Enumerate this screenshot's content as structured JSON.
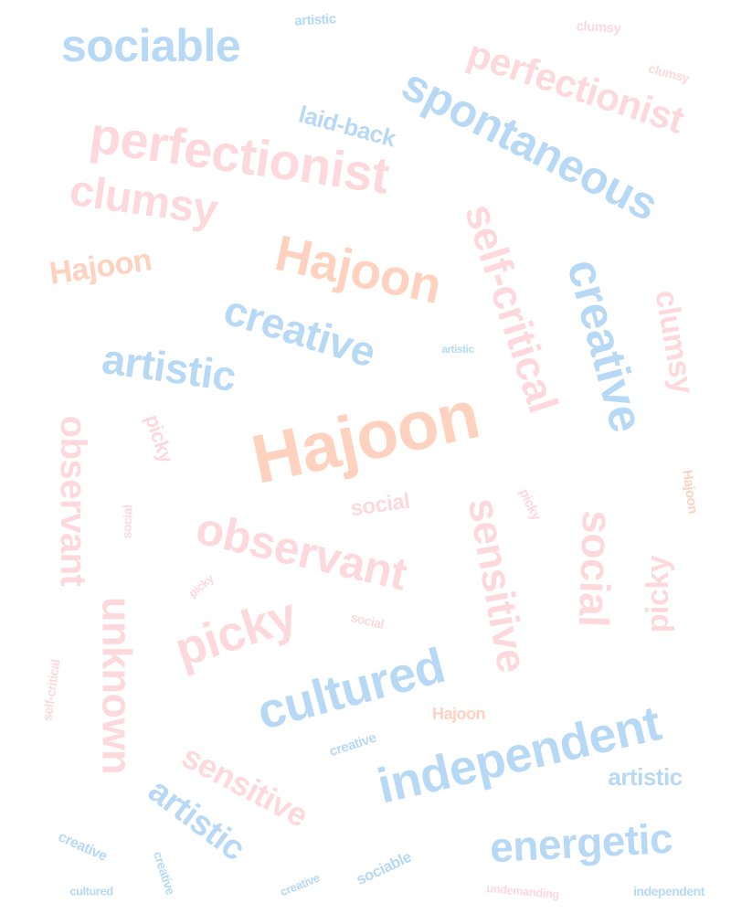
{
  "palette": {
    "blue": "#b7d9f5",
    "pink": "#fdd9de",
    "peach": "#ffd2bf"
  },
  "words": [
    {
      "text": "sociable",
      "color": "blue"
    },
    {
      "text": "artistic",
      "color": "blue"
    },
    {
      "text": "clumsy",
      "color": "pink"
    },
    {
      "text": "perfectionist",
      "color": "pink"
    },
    {
      "text": "clumsy",
      "color": "pink"
    },
    {
      "text": "spontaneous",
      "color": "blue"
    },
    {
      "text": "laid-back",
      "color": "blue"
    },
    {
      "text": "perfectionist",
      "color": "pink"
    },
    {
      "text": "clumsy",
      "color": "pink"
    },
    {
      "text": "self-critical",
      "color": "pink"
    },
    {
      "text": "Hajoon",
      "color": "peach"
    },
    {
      "text": "Hajoon",
      "color": "peach"
    },
    {
      "text": "creative",
      "color": "blue"
    },
    {
      "text": "clumsy",
      "color": "pink"
    },
    {
      "text": "creative",
      "color": "blue"
    },
    {
      "text": "artistic",
      "color": "blue"
    },
    {
      "text": "artistic",
      "color": "blue"
    },
    {
      "text": "picky",
      "color": "pink"
    },
    {
      "text": "Hajoon",
      "color": "peach"
    },
    {
      "text": "observant",
      "color": "pink"
    },
    {
      "text": "Hajoon",
      "color": "peach"
    },
    {
      "text": "social",
      "color": "pink"
    },
    {
      "text": "picky",
      "color": "pink"
    },
    {
      "text": "social",
      "color": "pink"
    },
    {
      "text": "sensitive",
      "color": "pink"
    },
    {
      "text": "social",
      "color": "pink"
    },
    {
      "text": "observant",
      "color": "pink"
    },
    {
      "text": "picky",
      "color": "pink"
    },
    {
      "text": "unknown",
      "color": "pink"
    },
    {
      "text": "picky",
      "color": "pink"
    },
    {
      "text": "picky",
      "color": "pink"
    },
    {
      "text": "social",
      "color": "pink"
    },
    {
      "text": "cultured",
      "color": "blue"
    },
    {
      "text": "self-critical",
      "color": "pink"
    },
    {
      "text": "Hajoon",
      "color": "peach"
    },
    {
      "text": "independent",
      "color": "blue"
    },
    {
      "text": "sensitive",
      "color": "pink"
    },
    {
      "text": "creative",
      "color": "blue"
    },
    {
      "text": "artistic",
      "color": "blue"
    },
    {
      "text": "artistic",
      "color": "blue"
    },
    {
      "text": "energetic",
      "color": "blue"
    },
    {
      "text": "creative",
      "color": "blue"
    },
    {
      "text": "creative",
      "color": "blue"
    },
    {
      "text": "sociable",
      "color": "blue"
    },
    {
      "text": "creative",
      "color": "blue"
    },
    {
      "text": "cultured",
      "color": "blue"
    },
    {
      "text": "undemanding",
      "color": "pink"
    },
    {
      "text": "independent",
      "color": "blue"
    }
  ]
}
